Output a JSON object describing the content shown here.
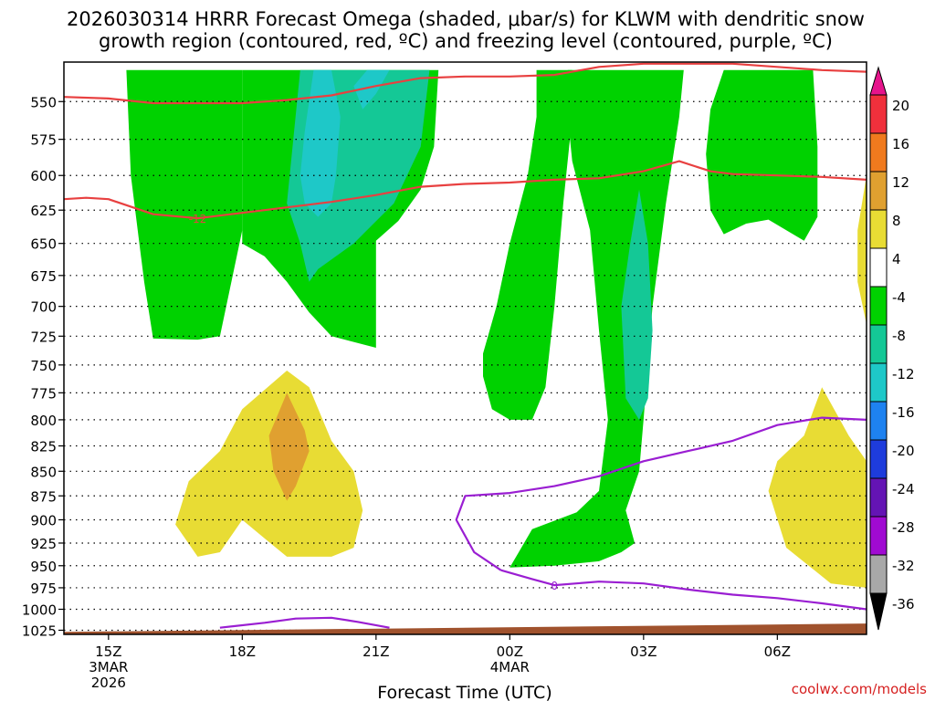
{
  "chart_data": {
    "type": "time-height cross section (filled contours + line contours)",
    "title_line1": "2026030314 HRRR Forecast Omega (shaded, μbar/s) for KLWM with dendritic snow",
    "title_line2": "growth region (contoured, red, ºC) and freezing level (contoured, purple, ºC)",
    "xlabel": "Forecast Time (UTC)",
    "credit": "coolwx.com/models",
    "x_unit": "hours after 2026-03-03 15Z",
    "xlim": [
      -1,
      17
    ],
    "x_ticks": [
      {
        "x": 0,
        "lines": [
          "15Z",
          "3MAR",
          "2026"
        ]
      },
      {
        "x": 3,
        "lines": [
          "18Z"
        ]
      },
      {
        "x": 6,
        "lines": [
          "21Z"
        ]
      },
      {
        "x": 9,
        "lines": [
          "00Z",
          "4MAR"
        ]
      },
      {
        "x": 12,
        "lines": [
          "03Z"
        ]
      },
      {
        "x": 15,
        "lines": [
          "06Z"
        ]
      }
    ],
    "y_unit": "hPa",
    "ylim": [
      1030,
      525
    ],
    "y_ticks": [
      550,
      575,
      600,
      625,
      650,
      675,
      700,
      725,
      750,
      775,
      800,
      825,
      850,
      875,
      900,
      925,
      950,
      975,
      1000,
      1025
    ],
    "grid": "dotted",
    "colorbar": {
      "ticks": [
        20,
        16,
        12,
        8,
        4,
        -4,
        -8,
        -12,
        -16,
        -20,
        -24,
        -28,
        -32,
        -36
      ],
      "bins": [
        {
          "from": 16,
          "to": 20,
          "color": "#f0303c"
        },
        {
          "from": 12,
          "to": 16,
          "color": "#f07a1e"
        },
        {
          "from": 8,
          "to": 12,
          "color": "#e0a030"
        },
        {
          "from": 4,
          "to": 8,
          "color": "#e8dc34"
        },
        {
          "from": -4,
          "to": 4,
          "color": "#ffffff"
        },
        {
          "from": -8,
          "to": -4,
          "color": "#00d200"
        },
        {
          "from": -12,
          "to": -8,
          "color": "#14c896"
        },
        {
          "from": -16,
          "to": -12,
          "color": "#1ec8c8"
        },
        {
          "from": -20,
          "to": -16,
          "color": "#1e82f0"
        },
        {
          "from": -24,
          "to": -20,
          "color": "#1e3cdc"
        },
        {
          "from": -28,
          "to": -24,
          "color": "#6414b4"
        },
        {
          "from": -32,
          "to": -28,
          "color": "#a00ad2"
        },
        {
          "from": -36,
          "to": -32,
          "color": "#a8a8a8"
        }
      ],
      "top_arrow_color": "#e6148c",
      "bottom_arrow_color": "#000000"
    },
    "omega_regions": [
      {
        "bin": "-8 to -4",
        "color": "#00d200",
        "polygon": [
          [
            0.4,
            530
          ],
          [
            3.0,
            530
          ],
          [
            3.0,
            640
          ],
          [
            2.5,
            725
          ],
          [
            2.0,
            728
          ],
          [
            1.0,
            727
          ],
          [
            0.8,
            680
          ],
          [
            0.5,
            600
          ]
        ]
      },
      {
        "bin": "-8 to -4",
        "color": "#00d200",
        "polygon": [
          [
            3.0,
            530
          ],
          [
            7.4,
            530
          ],
          [
            7.3,
            580
          ],
          [
            7.0,
            610
          ],
          [
            6.5,
            633
          ],
          [
            6.0,
            648
          ],
          [
            6.0,
            735
          ],
          [
            5.0,
            725
          ],
          [
            4.5,
            705
          ],
          [
            4.0,
            680
          ],
          [
            3.5,
            660
          ],
          [
            3.0,
            650
          ]
        ]
      },
      {
        "bin": "-8 to -4",
        "color": "#00d200",
        "polygon": [
          [
            7.6,
            530
          ],
          [
            9.6,
            530
          ],
          [
            9.6,
            560
          ],
          [
            9.4,
            600
          ],
          [
            9.0,
            650
          ],
          [
            8.7,
            700
          ],
          [
            8.4,
            740
          ],
          [
            8.4,
            760
          ],
          [
            8.6,
            790
          ],
          [
            9.0,
            800
          ],
          [
            9.5,
            800
          ],
          [
            9.8,
            770
          ],
          [
            10.0,
            700
          ],
          [
            10.2,
            620
          ],
          [
            10.4,
            560
          ],
          [
            10.4,
            530
          ]
        ]
      },
      {
        "bin": "-8 to -4",
        "color": "#00d200",
        "polygon": [
          [
            10.3,
            530
          ],
          [
            12.9,
            530
          ],
          [
            12.8,
            560
          ],
          [
            12.5,
            620
          ],
          [
            12.2,
            700
          ],
          [
            12.0,
            800
          ],
          [
            11.9,
            850
          ],
          [
            11.6,
            890
          ],
          [
            11.8,
            925
          ],
          [
            11.5,
            935
          ],
          [
            11.0,
            945
          ],
          [
            10.0,
            950
          ],
          [
            9.0,
            952
          ],
          [
            9.2,
            935
          ],
          [
            9.5,
            910
          ],
          [
            10.5,
            892
          ],
          [
            11.0,
            870
          ],
          [
            11.2,
            800
          ],
          [
            11.0,
            720
          ],
          [
            10.8,
            640
          ],
          [
            10.4,
            590
          ],
          [
            10.3,
            560
          ]
        ]
      },
      {
        "bin": "-8 to -4",
        "color": "#00d200",
        "polygon": [
          [
            13.8,
            530
          ],
          [
            15.8,
            530
          ],
          [
            15.9,
            580
          ],
          [
            15.9,
            630
          ],
          [
            15.6,
            648
          ],
          [
            14.8,
            632
          ],
          [
            14.3,
            635
          ],
          [
            13.8,
            643
          ],
          [
            13.5,
            625
          ],
          [
            13.4,
            585
          ],
          [
            13.5,
            555
          ]
        ]
      },
      {
        "bin": "-12 to -8",
        "color": "#14c896",
        "polygon": [
          [
            4.3,
            530
          ],
          [
            7.2,
            530
          ],
          [
            7.0,
            580
          ],
          [
            6.4,
            620
          ],
          [
            5.5,
            650
          ],
          [
            4.7,
            670
          ],
          [
            4.5,
            680
          ],
          [
            4.3,
            650
          ],
          [
            4.0,
            620
          ]
        ]
      },
      {
        "bin": "-16 to -12",
        "color": "#1ec8c8",
        "polygon": [
          [
            4.6,
            530
          ],
          [
            5.0,
            530
          ],
          [
            5.2,
            560
          ],
          [
            5.1,
            600
          ],
          [
            5.0,
            620
          ],
          [
            4.7,
            630
          ],
          [
            4.4,
            620
          ],
          [
            4.3,
            600
          ],
          [
            4.4,
            570
          ]
        ]
      },
      {
        "bin": "-16 to -12",
        "color": "#1ec8c8",
        "polygon": [
          [
            5.8,
            530
          ],
          [
            6.3,
            530
          ],
          [
            6.0,
            545
          ],
          [
            5.7,
            555
          ],
          [
            5.5,
            540
          ]
        ]
      },
      {
        "bin": "-12 to -8",
        "color": "#14c896",
        "polygon": [
          [
            11.9,
            610
          ],
          [
            12.1,
            650
          ],
          [
            12.2,
            720
          ],
          [
            12.1,
            780
          ],
          [
            11.9,
            800
          ],
          [
            11.6,
            780
          ],
          [
            11.5,
            700
          ],
          [
            11.7,
            650
          ]
        ]
      },
      {
        "bin": "4 to 8",
        "color": "#e8dc34",
        "polygon": [
          [
            4.0,
            755
          ],
          [
            4.5,
            770
          ],
          [
            5.0,
            820
          ],
          [
            5.5,
            850
          ],
          [
            5.7,
            890
          ],
          [
            5.5,
            930
          ],
          [
            5.0,
            940
          ],
          [
            4.0,
            940
          ],
          [
            3.5,
            920
          ],
          [
            3.0,
            900
          ],
          [
            2.5,
            935
          ],
          [
            2.0,
            940
          ],
          [
            1.5,
            905
          ],
          [
            1.8,
            860
          ],
          [
            2.5,
            830
          ],
          [
            3.0,
            790
          ]
        ]
      },
      {
        "bin": "8 to 12",
        "color": "#e0a030",
        "polygon": [
          [
            4.0,
            775
          ],
          [
            4.4,
            810
          ],
          [
            4.5,
            830
          ],
          [
            4.2,
            865
          ],
          [
            4.0,
            880
          ],
          [
            3.7,
            850
          ],
          [
            3.6,
            815
          ]
        ]
      },
      {
        "bin": "4 to 8",
        "color": "#e8dc34",
        "polygon": [
          [
            16.0,
            770
          ],
          [
            16.6,
            815
          ],
          [
            17.0,
            840
          ],
          [
            17.0,
            975
          ],
          [
            16.2,
            970
          ],
          [
            15.2,
            930
          ],
          [
            14.8,
            870
          ],
          [
            15.0,
            840
          ],
          [
            15.6,
            815
          ]
        ]
      },
      {
        "bin": "4 to 8",
        "color": "#e8dc34",
        "polygon": [
          [
            17.0,
            600
          ],
          [
            16.8,
            640
          ],
          [
            16.8,
            680
          ],
          [
            17.0,
            715
          ]
        ]
      }
    ],
    "terrain": {
      "color": "#a0522d",
      "x": [
        -1,
        17
      ],
      "surface_hPa": [
        1027,
        1017
      ]
    },
    "line_contours": [
      {
        "name": "-12 ºC",
        "color": "#e84040",
        "label": "-12",
        "label_at": [
          2.0,
          631
        ],
        "points": [
          [
            -1,
            617
          ],
          [
            -0.5,
            616
          ],
          [
            0,
            617
          ],
          [
            1,
            628
          ],
          [
            2,
            631
          ],
          [
            3,
            627
          ],
          [
            4,
            623
          ],
          [
            5,
            619
          ],
          [
            6,
            614
          ],
          [
            7,
            608
          ],
          [
            8,
            606
          ],
          [
            9,
            605
          ],
          [
            10,
            603
          ],
          [
            11,
            602
          ],
          [
            12,
            597
          ],
          [
            12.8,
            590
          ],
          [
            13.5,
            597
          ],
          [
            14,
            599
          ],
          [
            15,
            600
          ],
          [
            16,
            601
          ],
          [
            17,
            603
          ]
        ]
      },
      {
        "name": "-18 ºC",
        "color": "#e84040",
        "points": [
          [
            -1,
            547
          ],
          [
            0,
            548
          ],
          [
            1,
            551
          ],
          [
            2,
            551
          ],
          [
            3,
            551
          ],
          [
            4,
            549
          ],
          [
            5,
            546
          ],
          [
            6,
            540
          ],
          [
            7,
            535
          ],
          [
            8,
            534
          ],
          [
            9,
            534
          ],
          [
            10,
            533
          ],
          [
            11,
            528
          ],
          [
            12,
            526
          ],
          [
            13,
            526
          ],
          [
            14,
            526
          ],
          [
            15,
            528
          ],
          [
            16,
            530
          ],
          [
            17,
            531
          ]
        ]
      },
      {
        "name": "0 ºC",
        "color": "#9a1ed2",
        "label": "0",
        "label_at": [
          10.0,
          972
        ],
        "points": [
          [
            8.8,
            955
          ],
          [
            8.2,
            935
          ],
          [
            7.8,
            900
          ],
          [
            8.0,
            875
          ],
          [
            9.0,
            872
          ],
          [
            10.0,
            865
          ],
          [
            11.0,
            855
          ],
          [
            12.0,
            840
          ],
          [
            13.0,
            830
          ],
          [
            14.0,
            820
          ],
          [
            15.0,
            805
          ],
          [
            16.0,
            798
          ],
          [
            17.0,
            800
          ]
        ]
      },
      {
        "name": "0 ºC",
        "color": "#9a1ed2",
        "points": [
          [
            8.8,
            955
          ],
          [
            9.5,
            965
          ],
          [
            10.0,
            972
          ],
          [
            11.0,
            968
          ],
          [
            12.0,
            970
          ],
          [
            13.0,
            977
          ],
          [
            14.0,
            983
          ],
          [
            15.0,
            987
          ],
          [
            16.0,
            993
          ],
          [
            17.0,
            1000
          ]
        ]
      },
      {
        "name": "0 ºC",
        "color": "#9a1ed2",
        "points": [
          [
            2.5,
            1022
          ],
          [
            3.5,
            1016
          ],
          [
            4.2,
            1011
          ],
          [
            5.0,
            1010
          ],
          [
            5.6,
            1015
          ],
          [
            6.3,
            1022
          ]
        ]
      }
    ]
  }
}
